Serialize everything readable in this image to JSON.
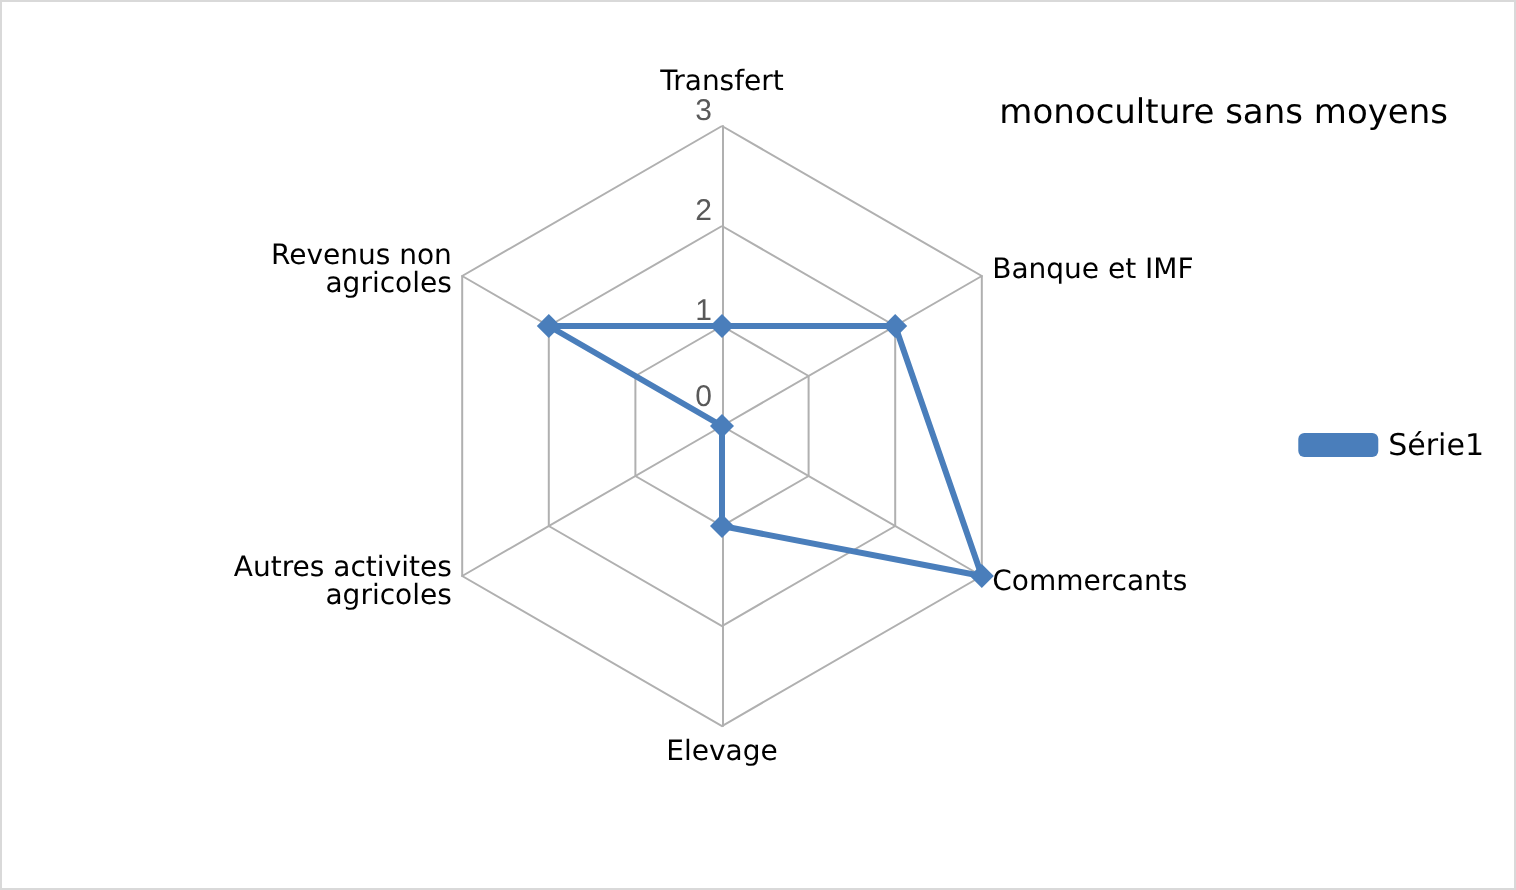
{
  "chart_data": {
    "type": "radar",
    "title": "monoculture sans moyens",
    "categories": [
      "Transfert",
      "Banque et IMF",
      "Commercants",
      "Elevage",
      "Autres activites\nagricoles",
      "Revenus non\nagricoles"
    ],
    "series": [
      {
        "name": "Série1",
        "color": "#4a7ebb",
        "values": [
          1,
          2,
          3,
          1,
          0,
          2
        ]
      }
    ],
    "ylim": [
      0,
      3
    ],
    "yticks": [
      0,
      1,
      2,
      3
    ],
    "legend": "right",
    "marker": "diamond",
    "grid": true
  }
}
